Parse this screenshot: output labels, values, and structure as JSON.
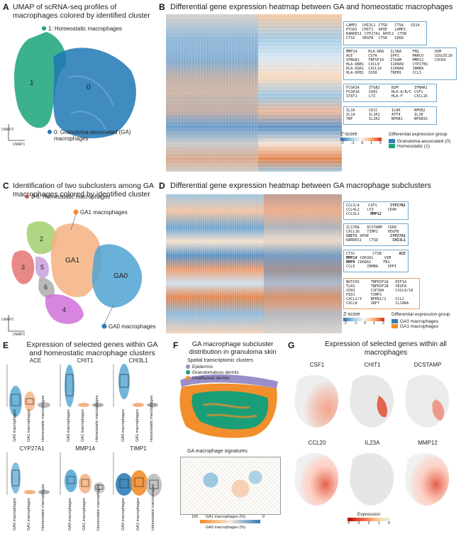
{
  "panels": {
    "A": {
      "label": "A",
      "title": "UMAP of scRNA-seq profiles of macrophages colored by identified cluster",
      "cluster1": "1: Homeostatic macrophages",
      "cluster0": "0: Granuloma-associated (GA) macrophages",
      "num1": "1",
      "num0": "0",
      "ax_y": "UMAP2",
      "ax_x": "UMAP1",
      "colors": {
        "cluster1": "#1aa37a",
        "cluster0": "#1f77b4"
      }
    },
    "B": {
      "label": "B",
      "title": "Differential gene expression heatmap between GA and homeostatic macrophages",
      "boxes": [
        {
          "rows": [
            [
              "LAMP2",
              "CHI3L1",
              "CTSD",
              "CTSA",
              "CD14"
            ],
            [
              "PTGDS",
              "CHIT1",
              "APOE",
              "LAMP1",
              ""
            ],
            [
              "RARRES1",
              "CYP27A1",
              "APOC1",
              "CTSB",
              ""
            ],
            [
              "CTSS",
              "VEGFB",
              "CTSK",
              "CD68",
              ""
            ]
          ]
        },
        {
          "rows": [
            [
              "MMP14",
              "HLA-DRA",
              "IL3RA",
              "FN1",
              "OSM"
            ],
            [
              "ACE",
              "CSTA",
              "SPP1",
              "MARCO",
              "SIGLEC10"
            ],
            [
              "IFNGR1",
              "TNFSF10",
              "ITGAM",
              "MMP12",
              "CXCR4"
            ],
            [
              "HLA-DRB1",
              "CXCL9",
              "S100A9",
              "CYP27B1",
              ""
            ],
            [
              "HLA-DQA1",
              "CXCL10",
              "S100A8",
              "INHBA",
              ""
            ],
            [
              "HLA-DPB1",
              "CD38",
              "TREM1",
              "CCL5",
              ""
            ]
          ]
        },
        {
          "rows": [
            [
              "FCGR3A",
              "ITGB2",
              "B2M",
              "IFNAR1"
            ],
            [
              "FCGR1A",
              "CD81",
              "HLA-A/B/C",
              "CSF1"
            ],
            [
              "STAT1",
              "LYZ",
              "HLA-F",
              "CXCL16"
            ]
          ]
        },
        {
          "rows": [
            [
              "IL10",
              "CD1C",
              "IL6R",
              "NFKB2"
            ],
            [
              "IL1A",
              "IL1R1",
              "ATF4",
              "IL1B"
            ],
            [
              "TNF",
              "IL1R2",
              "NFKB1",
              "NFKBIA"
            ]
          ]
        }
      ],
      "zscore_label": "Z-score",
      "zscore_ticks": [
        "-2",
        "-1",
        "0",
        "1",
        "2"
      ],
      "legend_title": "Differential expression group",
      "legend_items": [
        {
          "label": "Granuloma-associated (0)",
          "color": "#2c7fb8"
        },
        {
          "label": "Homeostatic (1)",
          "color": "#1aa37a"
        }
      ]
    },
    "C": {
      "label": "C",
      "title": "Identification of two subclusters among GA macrophages colored by identified cluster",
      "homeo": "2-6: Homeostatic macrophages",
      "ga1": "GA1 macrophages",
      "ga0": "GA0 macrophages",
      "clusters": [
        "2",
        "3",
        "5",
        "6",
        "4",
        "GA1",
        "GA0"
      ],
      "ax_y": "UMAP2",
      "ax_x": "UMAP1"
    },
    "D": {
      "label": "D",
      "title": "Differential gene expression heatmap between GA macrophage subclusters",
      "boxes": [
        {
          "rows": [
            [
              "CCL3/4",
              "CSF1",
              "CYP27B1"
            ],
            [
              "CCL4L2",
              "LYZ",
              "CD40"
            ],
            [
              "CCL3L1",
              "MMP12",
              ""
            ]
          ]
        },
        {
          "rows": [
            [
              "IL17RA",
              "DCSTAMP",
              "CD68"
            ],
            [
              "CXCL16",
              "TIMP2",
              "VEGFB"
            ],
            [
              "CHIT1",
              "APOE",
              "CYP27A1"
            ],
            [
              "RARRES1",
              "CTSD",
              "CHI3L1"
            ]
          ]
        },
        {
          "rows": [
            [
              "CTSC",
              "CTSB",
              "ACE"
            ],
            [
              "MMP14",
              "CD63A1",
              "VIM"
            ],
            [
              "MMP9",
              "CD68A2",
              "FN1"
            ],
            [
              "CCL5",
              "INHBA",
              "SPP1"
            ]
          ]
        },
        {
          "rows": [
            [
              "NOTCH2",
              "TNFRSF1A",
              "HIF1A"
            ],
            [
              "TLR2",
              "TNFRSF1B",
              "VEGFA"
            ],
            [
              "CD93",
              "CSF2RA",
              "CXCL9/10"
            ],
            [
              "PID1",
              "TIMP1",
              ""
            ],
            [
              "CXCL2/3",
              "NFKB1/2",
              "CCL2"
            ],
            [
              "CXCL8",
              "IRF7",
              "IL10RA"
            ]
          ]
        }
      ],
      "zscore_label": "Z-score",
      "zscore_ticks": [
        "-2",
        "-1",
        "0",
        "1",
        "2"
      ],
      "legend_title": "Differential expression group",
      "legend_items": [
        {
          "label": "GA0 macrophages",
          "color": "#2c7fb8"
        },
        {
          "label": "GA1 macrophages",
          "color": "#f28e2b"
        }
      ]
    },
    "E": {
      "label": "E",
      "title": "Expression of selected genes within GA and homeostatic macrophage clusters",
      "genes": [
        "ACE",
        "CHIT1",
        "CHI3L1",
        "CYP27A1",
        "MMP14",
        "TIMP1"
      ],
      "groups": [
        "GA0 macrophages",
        "GA1 macrophages",
        "Homeostatic macrophages"
      ]
    },
    "F": {
      "label": "F",
      "title": "GA macrophage subcluster distribution in granuloma skin",
      "sub1": "Spatial transcriptomic clusters",
      "legend": [
        {
          "label": "Epidermis",
          "color": "#9b8fc9"
        },
        {
          "label": "Granulomatous dermis",
          "color": "#1a9e77"
        },
        {
          "label": "Unaffected dermis",
          "color": "#f28e2b"
        }
      ],
      "sub2": "GA macrophage signatures",
      "bar_left": "100",
      "bar_mid": "GA1 macrophages (%)",
      "bar_right": "0",
      "bar_bottom": "GA0 macrophages (%)"
    },
    "G": {
      "label": "G",
      "title": "Expression of selected genes within all macrophages",
      "genes": [
        "CSF1",
        "CHIT1",
        "DCSTAMP",
        "CCL20",
        "IL23A",
        "MMP12"
      ],
      "legend_title": "Expression",
      "legend_ticks": [
        "4",
        "3",
        "2",
        "1",
        "0"
      ]
    }
  }
}
